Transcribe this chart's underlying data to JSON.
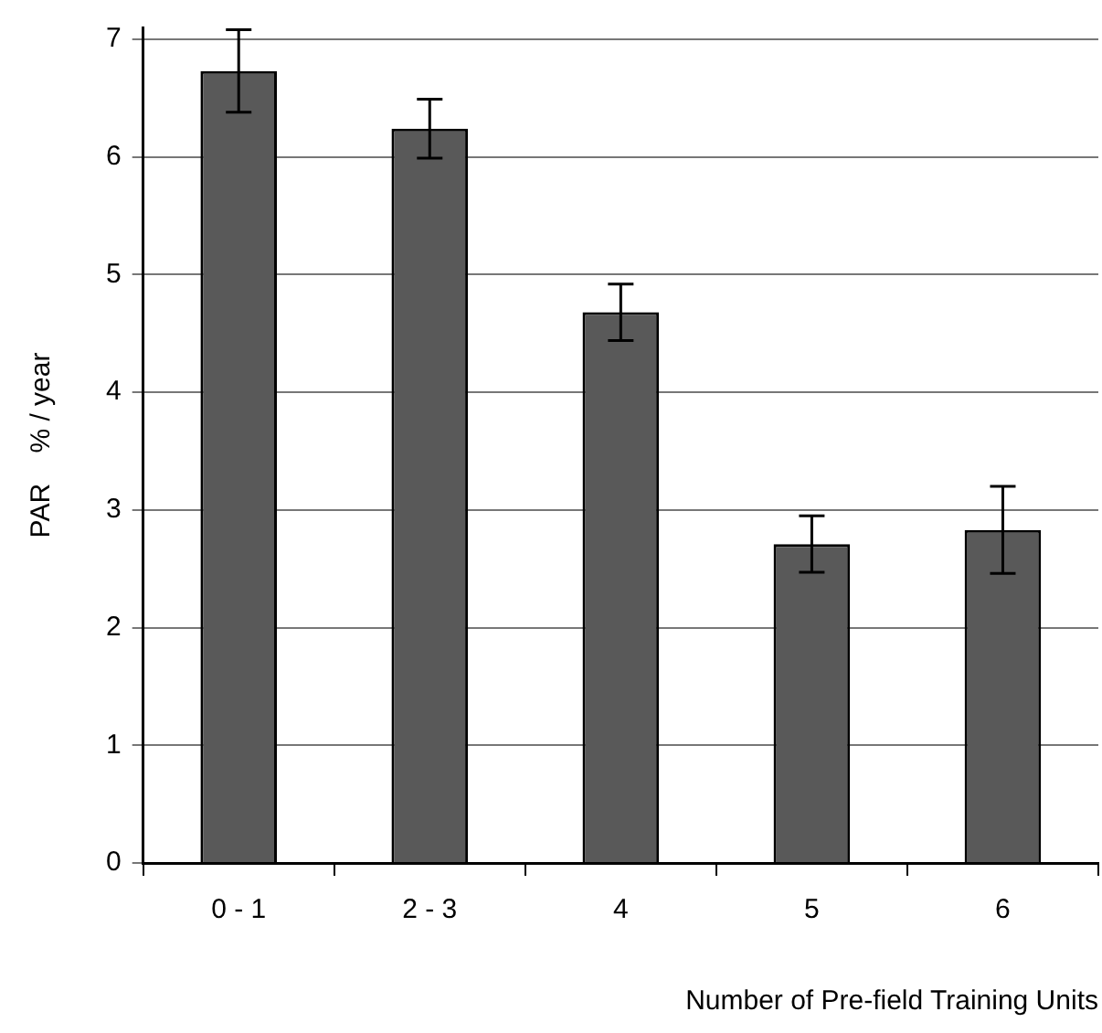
{
  "chart_data": {
    "type": "bar",
    "xlabel": "Number of Pre-field Training Units",
    "ylabel": "PAR    % / year",
    "categories": [
      "0 - 1",
      "2 - 3",
      "4",
      "5",
      "6"
    ],
    "values": [
      6.73,
      6.24,
      4.68,
      2.71,
      2.83
    ],
    "errors": [
      0.35,
      0.25,
      0.24,
      0.24,
      0.37
    ],
    "color": "#595959",
    "ylim": [
      0,
      7.1
    ],
    "yticks": [
      0,
      1,
      2,
      3,
      4,
      5,
      6,
      7
    ],
    "grid": "y",
    "legend": false
  }
}
